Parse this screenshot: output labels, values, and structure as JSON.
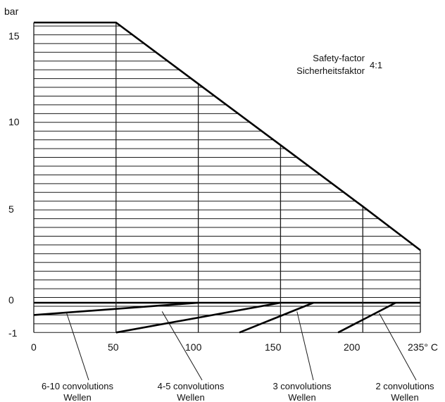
{
  "chart_data": {
    "type": "area",
    "title": "",
    "ylabel": "bar",
    "xlabel": "",
    "x_tick_labels": [
      "0",
      "50",
      "100",
      "150",
      "200",
      "235° C"
    ],
    "y_tick_labels": [
      "15",
      "10",
      "5",
      "0",
      "-1"
    ],
    "xlim": [
      0,
      235
    ],
    "ylim": [
      -1.7,
      16
    ],
    "grid": true,
    "note": {
      "line1": "Safety-factor",
      "line2": "Sicherheitsfaktor",
      "ratio": "4:1"
    },
    "series": [
      {
        "points": [
          [
            0,
            16
          ],
          [
            50,
            16
          ],
          [
            100,
            12.5
          ],
          [
            150,
            9
          ],
          [
            200,
            5.5
          ],
          [
            235,
            3
          ]
        ]
      }
    ],
    "vacuum_lines": [
      {
        "points": [
          [
            0,
            -0.7
          ],
          [
            100,
            0
          ]
        ]
      },
      {
        "points": [
          [
            50,
            -1.7
          ],
          [
            150,
            0
          ]
        ]
      },
      {
        "points": [
          [
            125,
            -1.7
          ],
          [
            170,
            0
          ]
        ]
      },
      {
        "points": [
          [
            185,
            -1.7
          ],
          [
            220,
            0
          ]
        ]
      }
    ],
    "annotations": [
      {
        "line1": "6-10 convolutions",
        "line2": "Wellen",
        "target": [
          20,
          -0.6
        ]
      },
      {
        "line1": "4-5 convolutions",
        "line2": "Wellen",
        "target": [
          78,
          -0.5
        ]
      },
      {
        "line1": "3 convolutions",
        "line2": "Wellen",
        "target": [
          160,
          -0.5
        ]
      },
      {
        "line1": "2 convolutions",
        "line2": "Wellen",
        "target": [
          210,
          -0.6
        ]
      }
    ]
  }
}
